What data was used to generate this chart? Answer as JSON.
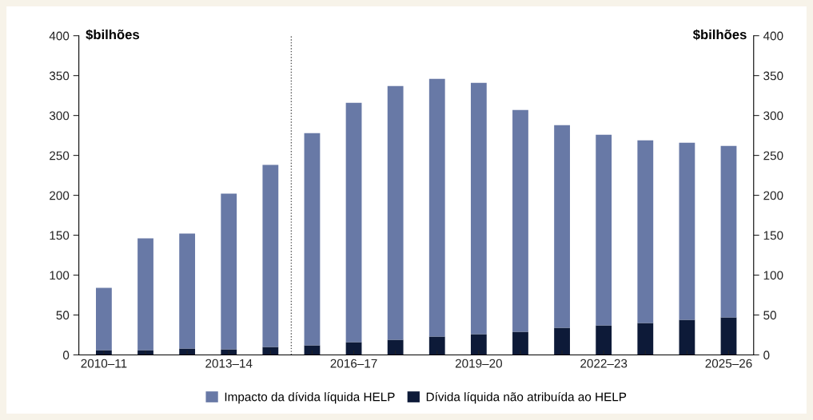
{
  "chart_data": {
    "type": "bar",
    "stacked": true,
    "ylabel": "$bilhões",
    "y2label": "$bilhões",
    "categories": [
      "2010–11",
      null,
      null,
      "2013–14",
      null,
      null,
      "2016–17",
      null,
      null,
      "2019–20",
      null,
      null,
      "2022–23",
      null,
      null,
      "2025–26"
    ],
    "ylim": [
      0,
      400
    ],
    "yticks": [
      0,
      50,
      100,
      150,
      200,
      250,
      300,
      350,
      400
    ],
    "y2lim": [
      0,
      400
    ],
    "y2ticks": [
      0,
      50,
      100,
      150,
      200,
      250,
      300,
      350,
      400
    ],
    "series": [
      {
        "name": "Dívida líquida não atribuída ao HELP",
        "color": "#0d1a38",
        "values": [
          6,
          6,
          8,
          7,
          10,
          12,
          16,
          19,
          23,
          26,
          29,
          34,
          37,
          40,
          44,
          47
        ]
      },
      {
        "name": "Impacto da dívida líquida HELP",
        "color": "#6879a6",
        "values": [
          78,
          140,
          144,
          195,
          228,
          266,
          300,
          318,
          323,
          315,
          278,
          254,
          239,
          229,
          222,
          215
        ]
      }
    ],
    "legend": "bottom",
    "grid": false
  }
}
